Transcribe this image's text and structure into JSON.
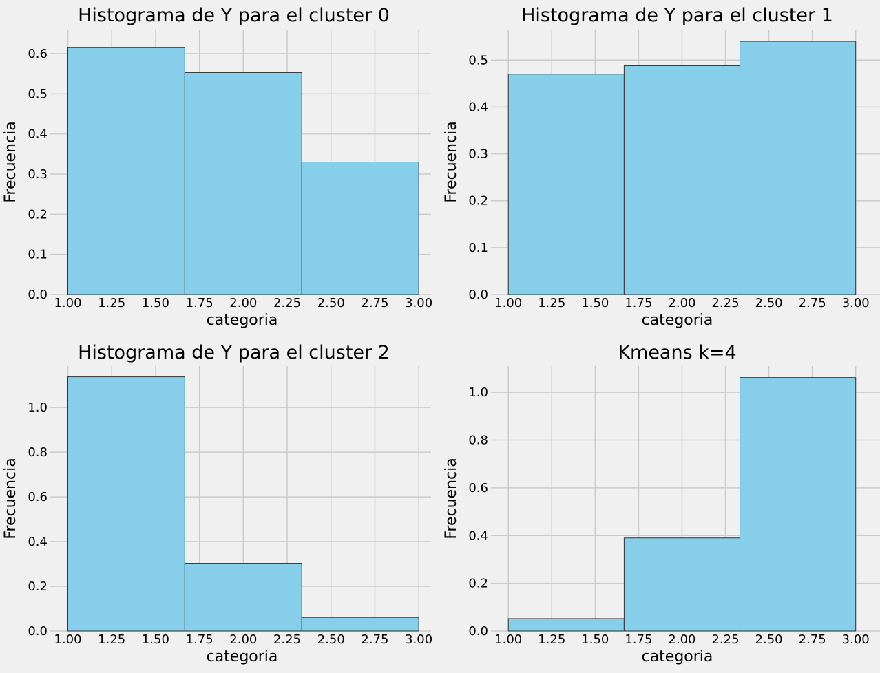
{
  "figure": {
    "background": "#f0f0f0",
    "bar_color": "#87ceeb",
    "bar_edge_color": "#333333",
    "grid_color": "#cbcbcb",
    "style": "fivethirtyeight"
  },
  "chart_data": [
    {
      "type": "bar",
      "title": "Histograma de Y para el cluster 0",
      "xlabel": "categoria",
      "ylabel": "Frecuencia",
      "bin_edges": [
        1.0,
        1.6667,
        2.3333,
        3.0
      ],
      "values": [
        0.615,
        0.553,
        0.33
      ],
      "xlim": [
        0.9,
        3.07
      ],
      "ylim": [
        0,
        0.66
      ],
      "xticks": [
        1.0,
        1.25,
        1.5,
        1.75,
        2.0,
        2.25,
        2.5,
        2.75,
        3.0
      ],
      "xtick_labels": [
        "1.00",
        "1.25",
        "1.50",
        "1.75",
        "2.00",
        "2.25",
        "2.50",
        "2.75",
        "3.00"
      ],
      "yticks": [
        0,
        0.1,
        0.2,
        0.3,
        0.4,
        0.5,
        0.6
      ],
      "ytick_labels": [
        "0.0",
        "0.1",
        "0.2",
        "0.3",
        "0.4",
        "0.5",
        "0.6"
      ],
      "grid": true
    },
    {
      "type": "bar",
      "title": "Histograma de Y para el cluster 1",
      "xlabel": "categoria",
      "ylabel": "Frecuencia",
      "bin_edges": [
        1.0,
        1.6667,
        2.3333,
        3.0
      ],
      "values": [
        0.47,
        0.488,
        0.54
      ],
      "xlim": [
        0.9,
        3.14
      ],
      "ylim": [
        0,
        0.565
      ],
      "xticks": [
        1.0,
        1.25,
        1.5,
        1.75,
        2.0,
        2.25,
        2.5,
        2.75,
        3.0
      ],
      "xtick_labels": [
        "1.00",
        "1.25",
        "1.50",
        "1.75",
        "2.00",
        "2.25",
        "2.50",
        "2.75",
        "3.00"
      ],
      "yticks": [
        0,
        0.1,
        0.2,
        0.3,
        0.4,
        0.5
      ],
      "ytick_labels": [
        "0.0",
        "0.1",
        "0.2",
        "0.3",
        "0.4",
        "0.5"
      ],
      "grid": true
    },
    {
      "type": "bar",
      "title": "Histograma de Y para el cluster 2",
      "xlabel": "categoria",
      "ylabel": "Frecuencia",
      "bin_edges": [
        1.0,
        1.6667,
        2.3333,
        3.0
      ],
      "values": [
        1.137,
        0.303,
        0.061
      ],
      "xlim": [
        0.9,
        3.07
      ],
      "ylim": [
        0,
        1.185
      ],
      "xticks": [
        1.0,
        1.25,
        1.5,
        1.75,
        2.0,
        2.25,
        2.5,
        2.75,
        3.0
      ],
      "xtick_labels": [
        "1.00",
        "1.25",
        "1.50",
        "1.75",
        "2.00",
        "2.25",
        "2.50",
        "2.75",
        "3.00"
      ],
      "yticks": [
        0,
        0.2,
        0.4,
        0.6,
        0.8,
        1.0
      ],
      "ytick_labels": [
        "0.0",
        "0.2",
        "0.4",
        "0.6",
        "0.8",
        "1.0"
      ],
      "grid": true
    },
    {
      "type": "bar",
      "title": "Kmeans k=4",
      "xlabel": "categoria",
      "ylabel": "Frecuencia",
      "bin_edges": [
        1.0,
        1.6667,
        2.3333,
        3.0
      ],
      "values": [
        0.052,
        0.39,
        1.062
      ],
      "xlim": [
        0.9,
        3.14
      ],
      "ylim": [
        0,
        1.11
      ],
      "xticks": [
        1.0,
        1.25,
        1.5,
        1.75,
        2.0,
        2.25,
        2.5,
        2.75,
        3.0
      ],
      "xtick_labels": [
        "1.00",
        "1.25",
        "1.50",
        "1.75",
        "2.00",
        "2.25",
        "2.50",
        "2.75",
        "3.00"
      ],
      "yticks": [
        0,
        0.2,
        0.4,
        0.6,
        0.8,
        1.0
      ],
      "ytick_labels": [
        "0.0",
        "0.2",
        "0.4",
        "0.6",
        "0.8",
        "1.0"
      ],
      "grid": true
    }
  ]
}
